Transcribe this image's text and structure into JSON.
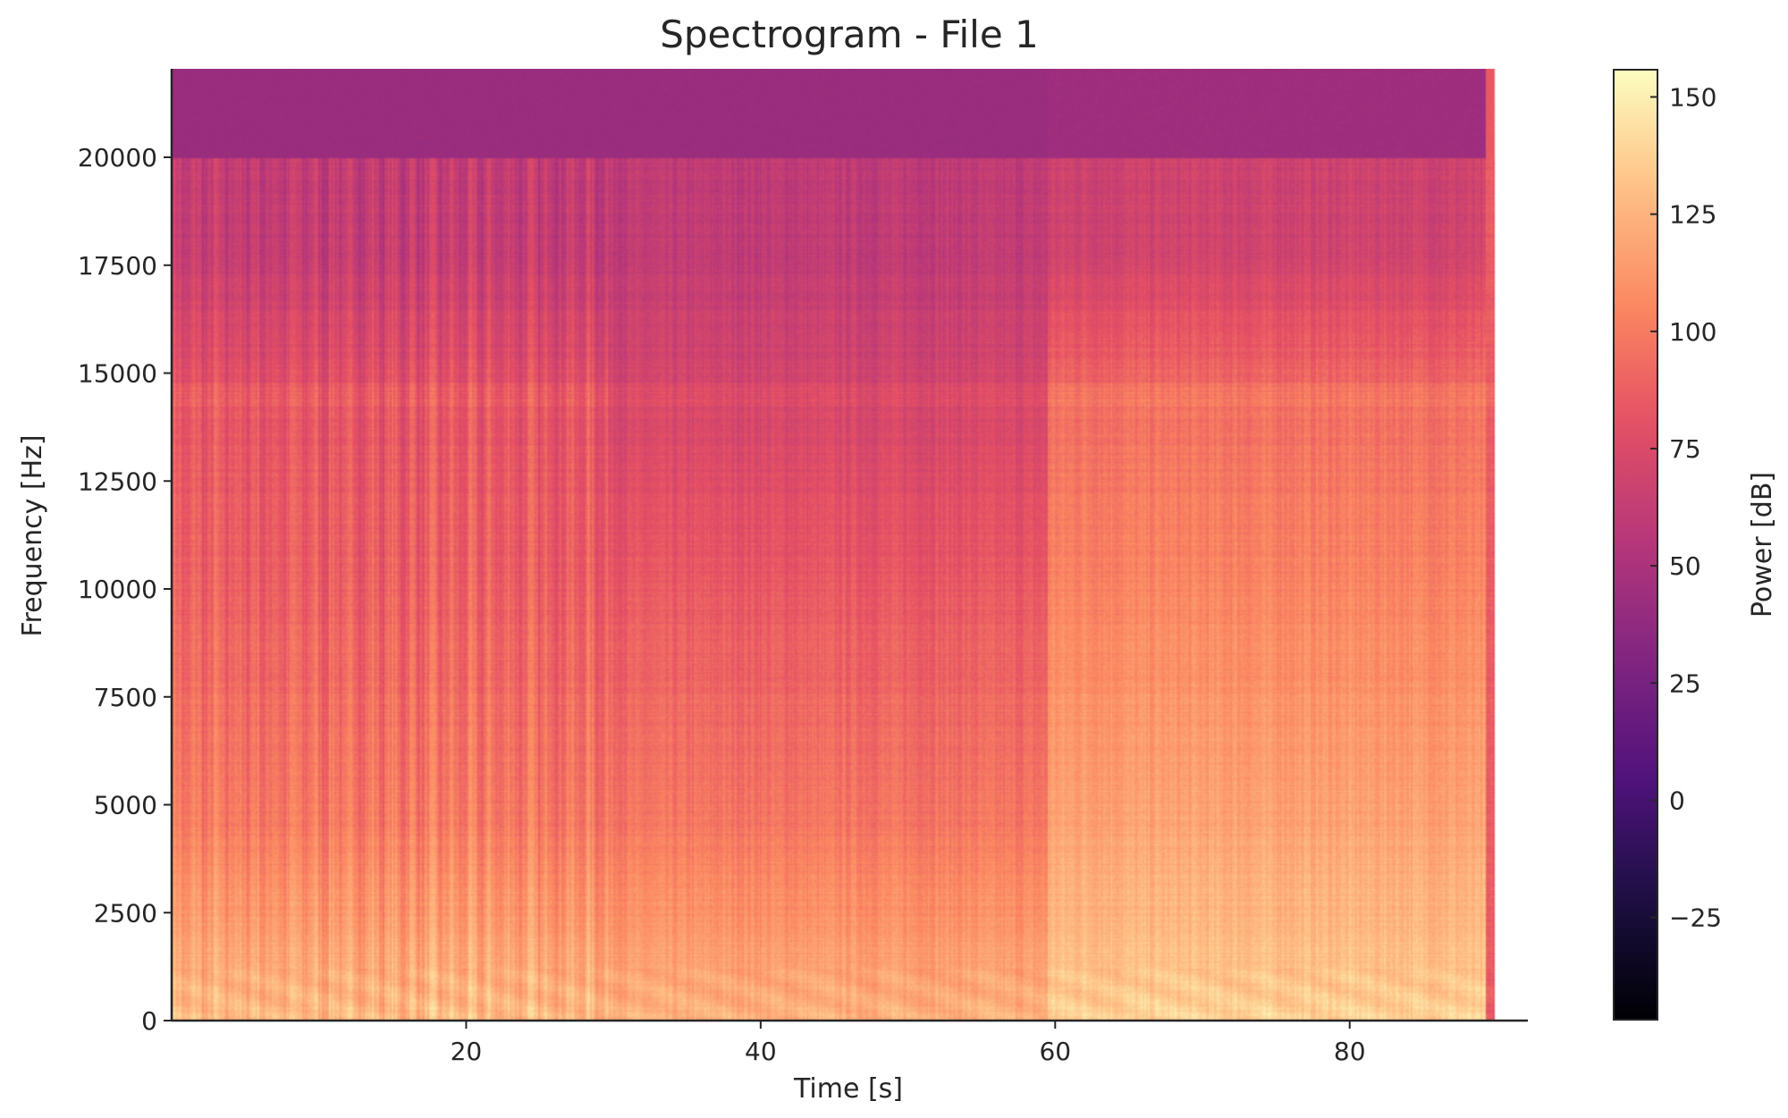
{
  "chart_data": {
    "type": "heatmap",
    "title": "Spectrogram - File 1",
    "xlabel": "Time [s]",
    "ylabel": "Frequency [Hz]",
    "colorbar_label": "Power [dB]",
    "colormap": "magma",
    "xlim": [
      0,
      92.1
    ],
    "data_time_range": [
      0,
      91
    ],
    "ylim": [
      0,
      22050
    ],
    "clim": [
      -47,
      156
    ],
    "xticks": [
      20,
      40,
      60,
      80
    ],
    "yticks": [
      0,
      2500,
      5000,
      7500,
      10000,
      12500,
      15000,
      17500,
      20000
    ],
    "cticks": [
      -25,
      0,
      25,
      50,
      75,
      100,
      125,
      150
    ],
    "cticks_labels": [
      "−25",
      "0",
      "25",
      "50",
      "75",
      "100",
      "125",
      "150"
    ],
    "grid": false,
    "segments": [
      {
        "time": [
          0,
          30
        ],
        "power_db_by_band": {
          "0-2000": 122,
          "2000-7000": 100,
          "7000-12500": 88,
          "12500-16000": 82,
          "16000-20000": 62,
          "20000-22050": 42
        }
      },
      {
        "time": [
          30,
          60.3
        ],
        "power_db_by_band": {
          "0-2000": 118,
          "2000-7000": 98,
          "7000-12500": 85,
          "12500-16000": 72,
          "16000-20000": 60,
          "20000-22050": 42
        }
      },
      {
        "time": [
          60.3,
          90.4
        ],
        "power_db_by_band": {
          "0-2000": 132,
          "2000-7000": 118,
          "7000-12500": 105,
          "12500-16000": 95,
          "16000-20000": 68,
          "20000-22050": 44
        }
      },
      {
        "time": [
          90.4,
          91
        ],
        "power_db_by_band": {
          "0-22050": 85
        }
      }
    ]
  }
}
